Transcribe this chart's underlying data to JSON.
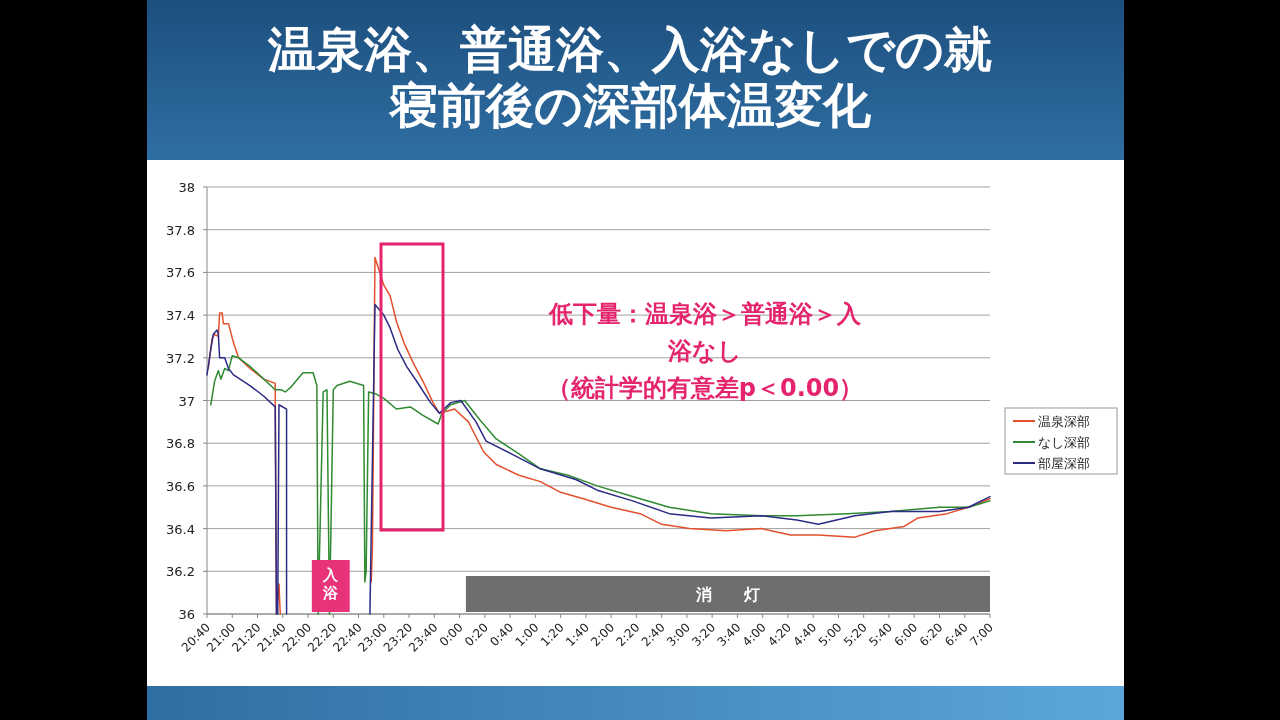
{
  "chart_data": {
    "type": "line",
    "title": "温泉浴、普通浴、入浴なしでの就寝前後の深部体温変化",
    "xlim": [
      "2000-01-01T20:40",
      "2000-01-02T07:00"
    ],
    "xticks": [
      {
        "value": "2000-01-01T20:40",
        "label": "20:40"
      },
      {
        "value": "2000-01-01T21:00",
        "label": "21:00"
      },
      {
        "value": "2000-01-01T21:20",
        "label": "21:20"
      },
      {
        "value": "2000-01-01T21:40",
        "label": "21:40"
      },
      {
        "value": "2000-01-01T22:00",
        "label": "22:00"
      },
      {
        "value": "2000-01-01T22:20",
        "label": "22:20"
      },
      {
        "value": "2000-01-01T22:40",
        "label": "22:40"
      },
      {
        "value": "2000-01-01T23:00",
        "label": "23:00"
      },
      {
        "value": "2000-01-01T23:20",
        "label": "23:20"
      },
      {
        "value": "2000-01-01T23:40",
        "label": "23:40"
      },
      {
        "value": "2000-01-02T00:00",
        "label": "0:00"
      },
      {
        "value": "2000-01-02T00:20",
        "label": "0:20"
      },
      {
        "value": "2000-01-02T00:40",
        "label": "0:40"
      },
      {
        "value": "2000-01-02T01:00",
        "label": "1:00"
      },
      {
        "value": "2000-01-02T01:20",
        "label": "1:20"
      },
      {
        "value": "2000-01-02T01:40",
        "label": "1:40"
      },
      {
        "value": "2000-01-02T02:00",
        "label": "2:00"
      },
      {
        "value": "2000-01-02T02:20",
        "label": "2:20"
      },
      {
        "value": "2000-01-02T02:40",
        "label": "2:40"
      },
      {
        "value": "2000-01-02T03:00",
        "label": "3:00"
      },
      {
        "value": "2000-01-02T03:20",
        "label": "3:20"
      },
      {
        "value": "2000-01-02T03:40",
        "label": "3:40"
      },
      {
        "value": "2000-01-02T04:00",
        "label": "4:00"
      },
      {
        "value": "2000-01-02T04:20",
        "label": "4:20"
      },
      {
        "value": "2000-01-02T04:40",
        "label": "4:40"
      },
      {
        "value": "2000-01-02T05:00",
        "label": "5:00"
      },
      {
        "value": "2000-01-02T05:20",
        "label": "5:20"
      },
      {
        "value": "2000-01-02T05:40",
        "label": "5:40"
      },
      {
        "value": "2000-01-02T06:00",
        "label": "6:00"
      },
      {
        "value": "2000-01-02T06:20",
        "label": "6:20"
      },
      {
        "value": "2000-01-02T06:40",
        "label": "6:40"
      },
      {
        "value": "2000-01-02T07:00",
        "label": "7:00"
      }
    ],
    "ylim": [
      36,
      38
    ],
    "yticks": [
      36,
      36.2,
      36.4,
      36.6,
      36.8,
      37,
      37.2,
      37.4,
      37.6,
      37.8,
      38
    ],
    "grid": "y",
    "legend": "right",
    "marker": "none",
    "series": [
      {
        "name": "温泉深部",
        "color": "#e2502c",
        "x": [
          "2000-01-01T20:41",
          "2000-01-01T20:44",
          "2000-01-01T20:46",
          "2000-01-01T20:49",
          "2000-01-01T20:50",
          "2000-01-01T20:52",
          "2000-01-01T20:53",
          "2000-01-01T20:57",
          "2000-01-01T21:01",
          "2000-01-01T21:05",
          "2000-01-01T21:14",
          "2000-01-01T21:25",
          "2000-01-01T21:34",
          "2000-01-01T21:35",
          "2000-01-01T21:37",
          "2000-01-01T21:38",
          "2000-01-01T21:42",
          "2000-01-01T22:50",
          "2000-01-01T22:51",
          "2000-01-01T22:53",
          "2000-01-01T23:00",
          "2000-01-01T23:05",
          "2000-01-01T23:10",
          "2000-01-01T23:16",
          "2000-01-01T23:23",
          "2000-01-01T23:31",
          "2000-01-01T23:39",
          "2000-01-01T23:44",
          "2000-01-01T23:56",
          "2000-01-02T00:07",
          "2000-01-02T00:19",
          "2000-01-02T00:29",
          "2000-01-02T00:47",
          "2000-01-02T01:04",
          "2000-01-02T01:20",
          "2000-01-02T01:38",
          "2000-01-02T02:00",
          "2000-01-02T02:23",
          "2000-01-02T02:40",
          "2000-01-02T03:02",
          "2000-01-02T03:31",
          "2000-01-02T03:59",
          "2000-01-02T04:22",
          "2000-01-02T04:44",
          "2000-01-02T05:13",
          "2000-01-02T05:29",
          "2000-01-02T05:52",
          "2000-01-02T06:03",
          "2000-01-02T06:26",
          "2000-01-02T06:43",
          "2000-01-02T07:00"
        ],
        "values": [
          37.15,
          37.29,
          37.31,
          37.3,
          37.41,
          37.41,
          37.36,
          37.36,
          37.27,
          37.2,
          37.15,
          37.1,
          37.08,
          36,
          36.14,
          36,
          null,
          36.15,
          36.31,
          37.67,
          37.54,
          37.49,
          37.37,
          37.27,
          37.18,
          37.09,
          36.99,
          36.94,
          36.96,
          36.9,
          36.76,
          36.7,
          36.65,
          36.62,
          36.57,
          36.54,
          36.5,
          36.47,
          36.42,
          36.4,
          36.39,
          36.4,
          36.37,
          36.37,
          36.36,
          36.39,
          36.41,
          36.45,
          36.47,
          36.5,
          36.54
        ]
      },
      {
        "name": "なし深部",
        "color": "#2f8a32",
        "x": [
          "2000-01-01T20:43",
          "2000-01-01T20:46",
          "2000-01-01T20:49",
          "2000-01-01T20:51",
          "2000-01-01T20:54",
          "2000-01-01T20:57",
          "2000-01-01T21:00",
          "2000-01-01T21:05",
          "2000-01-01T21:14",
          "2000-01-01T21:25",
          "2000-01-01T21:34",
          "2000-01-01T21:39",
          "2000-01-01T21:42",
          "2000-01-01T21:46",
          "2000-01-01T21:56",
          "2000-01-01T22:04",
          "2000-01-01T22:07",
          "2000-01-01T22:08",
          "2000-01-01T22:12",
          "2000-01-01T22:15",
          "2000-01-01T22:17",
          "2000-01-01T22:20",
          "2000-01-01T22:23",
          "2000-01-01T22:33",
          "2000-01-01T22:44",
          "2000-01-01T22:45",
          "2000-01-01T22:46",
          "2000-01-01T22:48",
          "2000-01-01T22:54",
          "2000-01-01T23:00",
          "2000-01-01T23:10",
          "2000-01-01T23:21",
          "2000-01-01T23:31",
          "2000-01-01T23:43",
          "2000-01-01T23:46",
          "2000-01-01T23:53",
          "2000-01-02T00:04",
          "2000-01-02T00:16",
          "2000-01-02T00:29",
          "2000-01-02T00:47",
          "2000-01-02T01:04",
          "2000-01-02T01:26",
          "2000-01-02T01:49",
          "2000-01-02T02:17",
          "2000-01-02T02:46",
          "2000-01-02T03:19",
          "2000-01-02T03:59",
          "2000-01-02T04:27",
          "2000-01-02T05:07",
          "2000-01-02T05:41",
          "2000-01-02T06:20",
          "2000-01-02T06:43",
          "2000-01-02T07:00"
        ],
        "values": [
          36.98,
          37.09,
          37.14,
          37.1,
          37.15,
          37.14,
          37.21,
          37.2,
          37.16,
          37.1,
          37.05,
          37.05,
          37.04,
          37.06,
          37.13,
          37.13,
          37.07,
          36,
          37.04,
          37.05,
          36,
          37.05,
          37.07,
          37.09,
          37.07,
          36.15,
          36.2,
          37.04,
          37.03,
          37.01,
          36.96,
          36.97,
          36.93,
          36.89,
          36.94,
          36.98,
          37.0,
          36.91,
          36.82,
          36.75,
          36.68,
          36.65,
          36.6,
          36.55,
          36.5,
          36.47,
          36.46,
          36.46,
          36.47,
          36.48,
          36.5,
          36.5,
          36.53
        ]
      },
      {
        "name": "部屋深部",
        "color": "#2b2b86",
        "x": [
          "2000-01-01T20:40",
          "2000-01-01T20:43",
          "2000-01-01T20:45",
          "2000-01-01T20:48",
          "2000-01-01T20:49",
          "2000-01-01T20:50",
          "2000-01-01T20:54",
          "2000-01-01T20:57",
          "2000-01-01T21:01",
          "2000-01-01T21:14",
          "2000-01-01T21:25",
          "2000-01-01T21:34",
          "2000-01-01T21:35",
          "2000-01-01T21:36",
          "2000-01-01T21:37",
          "2000-01-01T21:43",
          "2000-01-01T21:43",
          "2000-01-01T21:48",
          "2000-01-01T22:49",
          "2000-01-01T22:53",
          "2000-01-01T23:00",
          "2000-01-01T23:05",
          "2000-01-01T23:11",
          "2000-01-01T23:18",
          "2000-01-01T23:26",
          "2000-01-01T23:37",
          "2000-01-01T23:44",
          "2000-01-01T23:53",
          "2000-01-02T00:01",
          "2000-01-02T00:13",
          "2000-01-02T00:21",
          "2000-01-02T00:41",
          "2000-01-02T01:04",
          "2000-01-02T01:32",
          "2000-01-02T01:49",
          "2000-01-02T02:17",
          "2000-01-02T02:46",
          "2000-01-02T03:19",
          "2000-01-02T03:59",
          "2000-01-02T04:27",
          "2000-01-02T04:44",
          "2000-01-02T05:13",
          "2000-01-02T05:41",
          "2000-01-02T06:20",
          "2000-01-02T06:43",
          "2000-01-02T07:00"
        ],
        "values": [
          37.12,
          37.24,
          37.31,
          37.33,
          37.31,
          37.2,
          37.2,
          37.15,
          37.12,
          37.07,
          37.02,
          36.97,
          36,
          36,
          36.98,
          36.96,
          36,
          null,
          36,
          37.45,
          37.4,
          37.34,
          37.24,
          37.16,
          37.09,
          36.99,
          36.94,
          36.99,
          37.0,
          36.9,
          36.81,
          36.75,
          36.68,
          36.63,
          36.58,
          36.53,
          36.47,
          36.45,
          36.46,
          36.44,
          36.42,
          36.46,
          36.48,
          36.48,
          36.5,
          36.55
        ]
      }
    ],
    "bands": [
      {
        "axis": "x",
        "from": "2000-01-01T22:03",
        "to": "2000-01-01T22:33",
        "label": "入浴",
        "color": "#e8327a"
      },
      {
        "axis": "x",
        "from": "2000-01-02T00:05",
        "to": "2000-01-02T07:00",
        "label": "消　　灯",
        "color": "#6e6e6e"
      }
    ],
    "annotations": [
      "低下量：温泉浴＞普通浴＞入浴なし（統計学的有意差p＜0.00）"
    ]
  }
}
